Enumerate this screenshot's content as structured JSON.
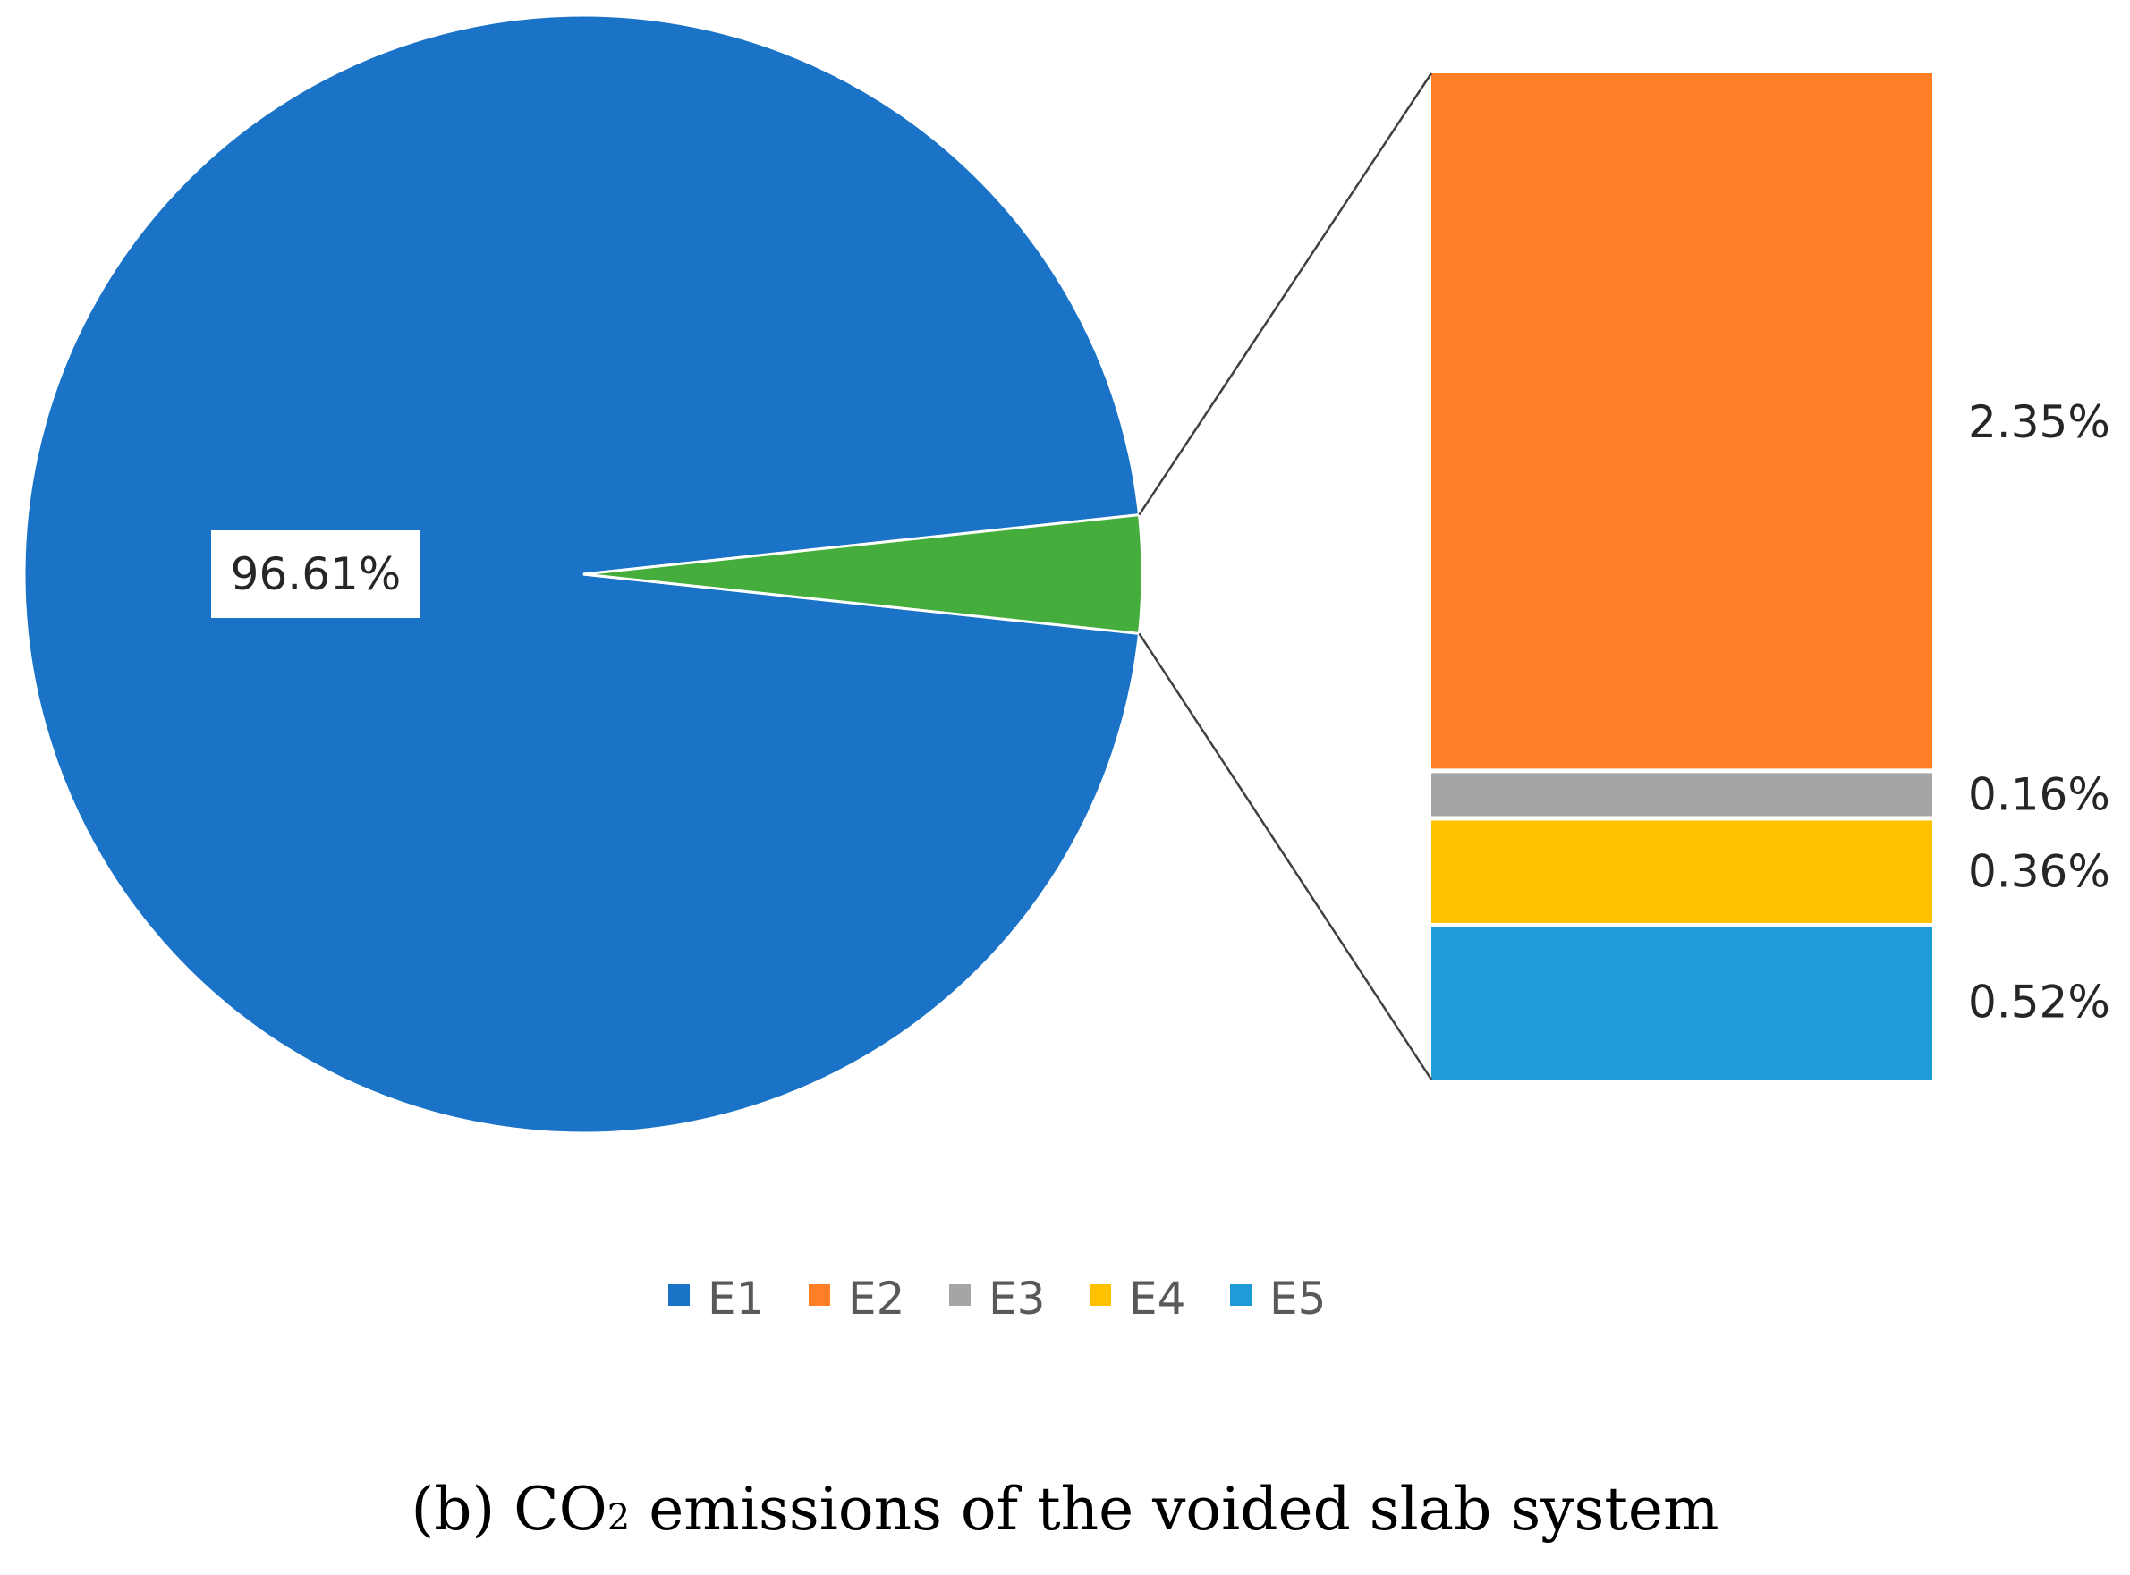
{
  "chart_data": {
    "type": "pie",
    "subtype": "pie-of-bar",
    "title": "(b) CO2 emissions of the voided slab system",
    "caption": {
      "prefix": "(b) CO",
      "subscript": "2",
      "suffix": " emissions of the voided slab system"
    },
    "series": [
      {
        "name": "E1",
        "value": 96.61,
        "label": "96.61%",
        "color": "#1a73c7"
      },
      {
        "name": "E2",
        "value": 2.35,
        "label": "2.35%",
        "color": "#ff7f27"
      },
      {
        "name": "E3",
        "value": 0.16,
        "label": "0.16%",
        "color": "#a5a5a5"
      },
      {
        "name": "E4",
        "value": 0.36,
        "label": "0.36%",
        "color": "#ffc000"
      },
      {
        "name": "E5",
        "value": 0.52,
        "label": "0.52%",
        "color": "#1f9bd8"
      }
    ],
    "pie_series": [
      "E1"
    ],
    "bar_series": [
      "E2",
      "E3",
      "E4",
      "E5"
    ],
    "other_slice_color": "#45ad3b",
    "legend_position": "bottom"
  }
}
